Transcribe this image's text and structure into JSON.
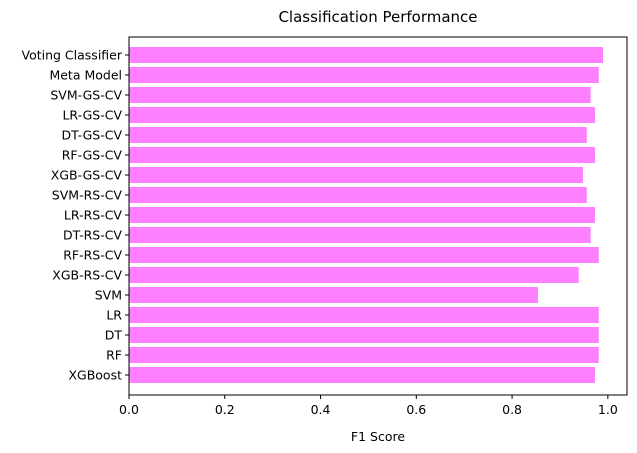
{
  "chart_data": {
    "type": "bar",
    "orientation": "horizontal",
    "title": "Classification Performance",
    "xlabel": "F1 Score",
    "ylabel": "",
    "xlim": [
      0,
      1.04
    ],
    "x_ticks": [
      "0.0",
      "0.2",
      "0.4",
      "0.6",
      "0.8",
      "1.0"
    ],
    "grid": false,
    "legend": "none",
    "bar_color": "#ff80ff",
    "categories": [
      "XGBoost",
      "RF",
      "DT",
      "LR",
      "SVM",
      "XGB-RS-CV",
      "RF-RS-CV",
      "DT-RS-CV",
      "LR-RS-CV",
      "SVM-RS-CV",
      "XGB-GS-CV",
      "RF-GS-CV",
      "DT-GS-CV",
      "LR-GS-CV",
      "SVM-GS-CV",
      "Meta Model",
      "Voting Classifier"
    ],
    "values": [
      0.973,
      0.981,
      0.981,
      0.981,
      0.854,
      0.939,
      0.981,
      0.964,
      0.973,
      0.956,
      0.948,
      0.973,
      0.956,
      0.973,
      0.964,
      0.981,
      0.99
    ]
  }
}
